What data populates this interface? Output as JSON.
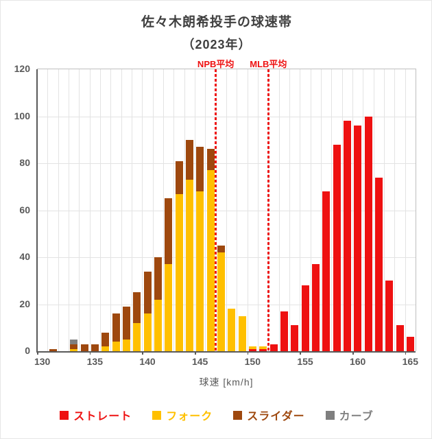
{
  "title": "佐々木朗希投手の球速帯",
  "subtitle": "（2023年）",
  "chart_data": {
    "type": "bar",
    "subtype": "stacked-histogram",
    "title": "佐々木朗希投手の球速帯（2023年）",
    "xlabel": "球速 [km/h]",
    "ylabel": "",
    "x_bins": [
      130,
      131,
      132,
      133,
      134,
      135,
      136,
      137,
      138,
      139,
      140,
      141,
      142,
      143,
      144,
      145,
      146,
      147,
      148,
      149,
      150,
      151,
      152,
      153,
      154,
      155,
      156,
      157,
      158,
      159,
      160,
      161,
      162,
      163,
      164,
      165
    ],
    "x_tick_labels": [
      130,
      135,
      140,
      145,
      150,
      155,
      160,
      165
    ],
    "y_ticks": [
      0,
      20,
      40,
      60,
      80,
      100,
      120
    ],
    "ylim": [
      0,
      120
    ],
    "grid": true,
    "series": [
      {
        "name": "ストレート",
        "color": "#ee1111",
        "values": [
          0,
          0,
          0,
          0,
          0,
          0,
          0,
          0,
          0,
          0,
          0,
          0,
          0,
          0,
          0,
          0,
          0,
          0,
          0,
          0,
          1,
          1,
          3,
          17,
          11,
          28,
          37,
          68,
          88,
          98,
          96,
          100,
          74,
          30,
          11,
          6
        ]
      },
      {
        "name": "フォーク",
        "color": "#ffc000",
        "values": [
          0,
          0,
          0,
          1,
          0,
          0,
          2,
          4,
          5,
          12,
          16,
          22,
          37,
          67,
          73,
          68,
          77,
          42,
          18,
          15,
          1,
          1,
          0,
          0,
          0,
          0,
          0,
          0,
          0,
          0,
          0,
          0,
          0,
          0,
          0,
          0
        ]
      },
      {
        "name": "スライダー",
        "color": "#9e480e",
        "values": [
          0,
          1,
          0,
          2,
          3,
          3,
          6,
          12,
          14,
          13,
          18,
          18,
          28,
          14,
          17,
          19,
          9,
          3,
          0,
          0,
          0,
          0,
          0,
          0,
          0,
          0,
          0,
          0,
          0,
          0,
          0,
          0,
          0,
          0,
          0,
          0
        ]
      },
      {
        "name": "カーブ",
        "color": "#7f7f7f",
        "values": [
          0,
          0,
          0,
          2,
          0,
          0,
          0,
          0,
          0,
          0,
          0,
          0,
          0,
          0,
          0,
          0,
          0,
          0,
          0,
          0,
          0,
          0,
          0,
          0,
          0,
          0,
          0,
          0,
          0,
          0,
          0,
          0,
          0,
          0,
          0,
          0
        ]
      }
    ],
    "annotations": [
      {
        "label": "NPB平均",
        "x": 146.5
      },
      {
        "label": "MLB平均",
        "x": 151.5
      }
    ],
    "legend_position": "bottom"
  }
}
